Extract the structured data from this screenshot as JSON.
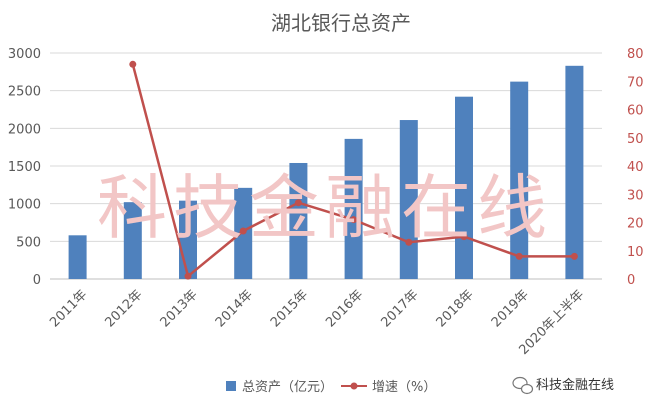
{
  "chart_data": {
    "type": "bar",
    "title": "湖北银行总资产",
    "categories": [
      "2011年",
      "2012年",
      "2013年",
      "2014年",
      "2015年",
      "2016年",
      "2017年",
      "2018年",
      "2019年",
      "2020年上半年"
    ],
    "series": [
      {
        "name": "总资产（亿元）",
        "type": "bar",
        "axis": "left",
        "color": "#4f81bd",
        "values": [
          580,
          1020,
          1040,
          1210,
          1540,
          1860,
          2110,
          2420,
          2620,
          2830
        ]
      },
      {
        "name": "增速（%）",
        "type": "line",
        "axis": "right",
        "color": "#c0504d",
        "values": [
          null,
          76,
          1,
          17,
          27,
          21,
          13,
          15,
          8,
          8
        ]
      }
    ],
    "y_left": {
      "min": 0,
      "max": 3000,
      "ticks": [
        "0",
        "500",
        "1000",
        "1500",
        "2000",
        "2500",
        "3000"
      ]
    },
    "y_right": {
      "min": 0,
      "max": 80,
      "ticks": [
        "0",
        "10",
        "20",
        "30",
        "40",
        "50",
        "60",
        "70",
        "80"
      ]
    },
    "grid": true,
    "legend": "bottom"
  },
  "watermark": "科技金融在线",
  "brand": {
    "text": "科技金融在线",
    "icon": "wechat-icon"
  }
}
